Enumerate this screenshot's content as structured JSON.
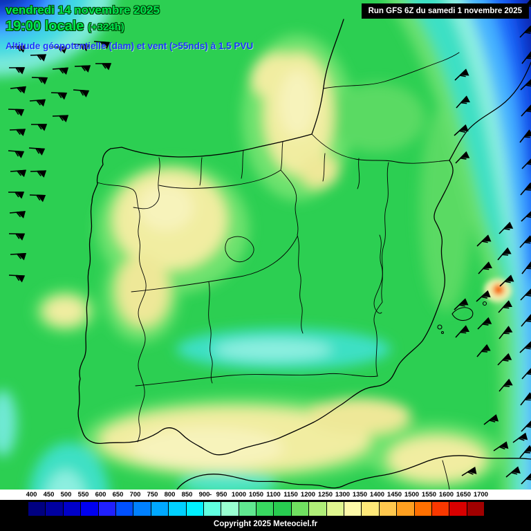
{
  "header": {
    "date_line": "vendredi 14 novembre 2025",
    "time_line": "19:00 locale",
    "time_offset": "(+324h)",
    "subtitle": "Altitude géopotentielle (dam) et vent (>55nds) à 1.5 PVU",
    "run_info": "Run GFS 6Z du samedi 1 novembre 2025"
  },
  "footer": {
    "copyright": "Copyright 2025 Meteociel.fr"
  },
  "legend": {
    "values": [
      "400",
      "450",
      "500",
      "550",
      "600",
      "650",
      "700",
      "750",
      "800",
      "850",
      "900",
      "950",
      "1000",
      "1050",
      "1100",
      "1150",
      "1200",
      "1250",
      "1300",
      "1350",
      "1400",
      "1450",
      "1500",
      "1550",
      "1600",
      "1650",
      "1700"
    ],
    "dash_label": "-",
    "colors": [
      "#000080",
      "#0000a0",
      "#0000c8",
      "#0000f0",
      "#2020ff",
      "#0050ff",
      "#0080ff",
      "#00a8ff",
      "#00d0ff",
      "#00f0ff",
      "#60ffe0",
      "#98ffd0",
      "#60e890",
      "#38d860",
      "#28cc50",
      "#70e060",
      "#b0ee78",
      "#e0f690",
      "#fdf9a8",
      "#ffe878",
      "#ffc84e",
      "#ffa020",
      "#ff7000",
      "#f83800",
      "#d80000",
      "#a00000"
    ]
  },
  "map": {
    "palette": {
      "green": "#2ccf52",
      "light_green": "#6ee26e",
      "pale_yellow": "#f1eda1",
      "turquoise": "#3ce0c4",
      "light_cyan": "#8defe0",
      "light_blue": "#45b2ff",
      "blue": "#1b6bfb",
      "deep_blue": "#0a41dd",
      "navy": "#0727ae",
      "vortex_orange": "#ff9a00",
      "vortex_red": "#e81500",
      "line_color": "#000000"
    },
    "wind_barbs": [
      [
        14,
        68,
        176
      ],
      [
        13,
        98,
        180
      ],
      [
        15,
        128,
        174
      ],
      [
        12,
        158,
        182
      ],
      [
        14,
        188,
        178
      ],
      [
        12,
        218,
        184
      ],
      [
        15,
        248,
        176
      ],
      [
        12,
        278,
        180
      ],
      [
        14,
        308,
        175
      ],
      [
        13,
        338,
        181
      ],
      [
        15,
        368,
        177
      ],
      [
        13,
        398,
        183
      ],
      [
        44,
        80,
        178
      ],
      [
        46,
        112,
        182
      ],
      [
        43,
        146,
        176
      ],
      [
        45,
        180,
        180
      ],
      [
        42,
        214,
        184
      ],
      [
        44,
        248,
        178
      ],
      [
        43,
        282,
        182
      ],
      [
        74,
        68,
        180
      ],
      [
        76,
        100,
        176
      ],
      [
        74,
        134,
        182
      ],
      [
        76,
        168,
        178
      ],
      [
        106,
        64,
        182
      ],
      [
        108,
        96,
        178
      ],
      [
        106,
        130,
        184
      ],
      [
        136,
        60,
        184
      ],
      [
        138,
        92,
        180
      ],
      [
        754,
        16,
        130
      ],
      [
        752,
        54,
        134
      ],
      [
        755,
        92,
        128
      ],
      [
        753,
        130,
        136
      ],
      [
        754,
        168,
        132
      ],
      [
        752,
        206,
        128
      ],
      [
        755,
        244,
        134
      ],
      [
        753,
        282,
        130
      ],
      [
        754,
        320,
        136
      ],
      [
        752,
        358,
        132
      ],
      [
        755,
        396,
        128
      ],
      [
        753,
        434,
        134
      ],
      [
        754,
        472,
        130
      ],
      [
        752,
        510,
        136
      ],
      [
        755,
        548,
        132
      ],
      [
        753,
        586,
        128
      ],
      [
        754,
        624,
        134
      ],
      [
        752,
        662,
        130
      ],
      [
        754,
        700,
        134
      ],
      [
        722,
        338,
        134
      ],
      [
        720,
        376,
        130
      ],
      [
        723,
        414,
        136
      ],
      [
        721,
        452,
        132
      ],
      [
        722,
        490,
        128
      ],
      [
        720,
        528,
        134
      ],
      [
        722,
        566,
        130
      ],
      [
        690,
        356,
        136
      ],
      [
        692,
        396,
        132
      ],
      [
        689,
        436,
        138
      ],
      [
        691,
        476,
        134
      ],
      [
        690,
        516,
        130
      ],
      [
        658,
        116,
        136
      ],
      [
        660,
        156,
        132
      ],
      [
        657,
        196,
        138
      ],
      [
        659,
        236,
        134
      ],
      [
        657,
        448,
        136
      ],
      [
        659,
        488,
        132
      ],
      [
        700,
        614,
        142
      ],
      [
        714,
        652,
        146
      ],
      [
        732,
        690,
        140
      ],
      [
        668,
        688,
        148
      ],
      [
        742,
        640,
        144
      ]
    ]
  }
}
